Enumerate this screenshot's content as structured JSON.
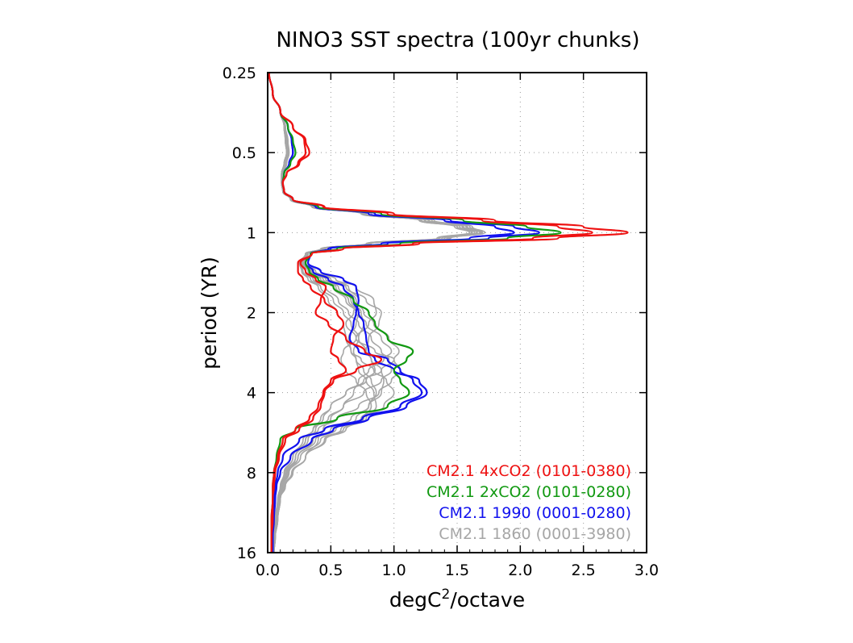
{
  "chart_data": {
    "type": "line",
    "title": "NINO3 SST spectra (100yr chunks)",
    "xlabel": {
      "base": "degC",
      "superscript": "2",
      "suffix": "/octave"
    },
    "ylabel": "period (YR)",
    "xlim": [
      0.0,
      3.0
    ],
    "ylim": [
      0.25,
      16
    ],
    "y_scale": "log2",
    "y_inverted": true,
    "x_ticks": [
      "0.0",
      "0.5",
      "1.0",
      "1.5",
      "2.0",
      "2.5",
      "3.0"
    ],
    "x_tick_values": [
      0.0,
      0.5,
      1.0,
      1.5,
      2.0,
      2.5,
      3.0
    ],
    "y_ticks": [
      "0.25",
      "0.5",
      "1",
      "2",
      "4",
      "8",
      "16"
    ],
    "y_tick_values": [
      0.25,
      0.5,
      1,
      2,
      4,
      8,
      16
    ],
    "grid": true,
    "legend_position": "bottom-right",
    "periods": [
      0.25,
      0.3,
      0.35,
      0.4,
      0.45,
      0.5,
      0.55,
      0.6,
      0.65,
      0.7,
      0.75,
      0.8,
      0.85,
      0.9,
      0.95,
      1.0,
      1.05,
      1.1,
      1.15,
      1.2,
      1.3,
      1.4,
      1.5,
      1.6,
      1.8,
      2.0,
      2.2,
      2.5,
      2.8,
      3.0,
      3.3,
      3.6,
      4.0,
      4.5,
      5.0,
      5.5,
      6.0,
      7.0,
      8.0,
      9.0,
      10.0,
      12.0,
      14.0,
      16.0
    ],
    "series": [
      {
        "name": "CM2.1 4xCO2 (0101-0380)",
        "color": "#ee1111",
        "members": [
          [
            0.01,
            0.04,
            0.1,
            0.2,
            0.3,
            0.33,
            0.25,
            0.15,
            0.12,
            0.13,
            0.2,
            0.45,
            1.0,
            1.8,
            2.5,
            2.85,
            2.3,
            1.2,
            0.6,
            0.35,
            0.24,
            0.24,
            0.28,
            0.34,
            0.45,
            0.55,
            0.6,
            0.52,
            0.5,
            0.56,
            0.62,
            0.5,
            0.44,
            0.4,
            0.33,
            0.22,
            0.12,
            0.08,
            0.05,
            0.04,
            0.04,
            0.03,
            0.03,
            0.03
          ],
          [
            0.01,
            0.04,
            0.1,
            0.2,
            0.29,
            0.3,
            0.24,
            0.15,
            0.12,
            0.13,
            0.2,
            0.44,
            0.95,
            1.7,
            2.3,
            2.57,
            2.1,
            1.15,
            0.6,
            0.35,
            0.26,
            0.3,
            0.38,
            0.46,
            0.42,
            0.38,
            0.48,
            0.62,
            0.77,
            0.9,
            0.7,
            0.52,
            0.45,
            0.42,
            0.36,
            0.25,
            0.14,
            0.09,
            0.06,
            0.05,
            0.04,
            0.04,
            0.03,
            0.03
          ]
        ]
      },
      {
        "name": "CM2.1 2xCO2 (0101-0280)",
        "color": "#119911",
        "members": [
          [
            0.01,
            0.04,
            0.1,
            0.16,
            0.2,
            0.22,
            0.18,
            0.13,
            0.12,
            0.13,
            0.2,
            0.4,
            0.9,
            1.55,
            2.05,
            2.32,
            1.9,
            1.05,
            0.55,
            0.34,
            0.3,
            0.33,
            0.4,
            0.52,
            0.68,
            0.8,
            0.85,
            0.95,
            1.15,
            1.1,
            1.0,
            1.05,
            1.12,
            0.95,
            0.55,
            0.22,
            0.1,
            0.07,
            0.05,
            0.04,
            0.04,
            0.03,
            0.03,
            0.03
          ]
        ]
      },
      {
        "name": "CM2.1 1990 (0001-0280)",
        "color": "#1111ee",
        "members": [
          [
            0.01,
            0.04,
            0.1,
            0.16,
            0.19,
            0.2,
            0.17,
            0.13,
            0.12,
            0.13,
            0.2,
            0.4,
            0.85,
            1.45,
            1.95,
            2.15,
            1.75,
            0.95,
            0.5,
            0.34,
            0.32,
            0.42,
            0.6,
            0.7,
            0.72,
            0.7,
            0.68,
            0.65,
            0.72,
            0.95,
            1.05,
            1.15,
            1.22,
            1.05,
            0.75,
            0.45,
            0.25,
            0.12,
            0.08,
            0.06,
            0.05,
            0.04,
            0.04,
            0.04
          ],
          [
            0.01,
            0.04,
            0.1,
            0.16,
            0.19,
            0.2,
            0.17,
            0.13,
            0.12,
            0.13,
            0.2,
            0.38,
            0.8,
            1.4,
            1.8,
            1.95,
            1.6,
            0.9,
            0.48,
            0.34,
            0.3,
            0.36,
            0.48,
            0.6,
            0.68,
            0.72,
            0.76,
            0.78,
            0.8,
            0.85,
            1.0,
            1.2,
            1.26,
            1.1,
            0.8,
            0.52,
            0.35,
            0.18,
            0.1,
            0.07,
            0.06,
            0.05,
            0.04,
            0.04
          ]
        ]
      },
      {
        "name": "CM2.1 1860 (0001-3980)",
        "color": "#a6a6a6",
        "members": [
          [
            0.01,
            0.04,
            0.1,
            0.14,
            0.15,
            0.16,
            0.14,
            0.12,
            0.12,
            0.13,
            0.2,
            0.38,
            0.8,
            1.3,
            1.6,
            1.72,
            1.45,
            0.82,
            0.45,
            0.32,
            0.28,
            0.34,
            0.46,
            0.62,
            0.78,
            0.9,
            0.88,
            0.8,
            0.78,
            0.82,
            0.85,
            0.78,
            0.62,
            0.5,
            0.42,
            0.36,
            0.3,
            0.22,
            0.16,
            0.12,
            0.1,
            0.08,
            0.06,
            0.05
          ],
          [
            0.01,
            0.04,
            0.1,
            0.13,
            0.14,
            0.15,
            0.13,
            0.11,
            0.11,
            0.12,
            0.18,
            0.35,
            0.75,
            1.2,
            1.5,
            1.62,
            1.35,
            0.78,
            0.42,
            0.3,
            0.26,
            0.3,
            0.4,
            0.52,
            0.62,
            0.7,
            0.78,
            0.9,
            0.98,
            0.92,
            0.8,
            0.72,
            0.68,
            0.6,
            0.48,
            0.36,
            0.28,
            0.2,
            0.14,
            0.1,
            0.08,
            0.06,
            0.05,
            0.04
          ],
          [
            0.01,
            0.04,
            0.1,
            0.14,
            0.15,
            0.16,
            0.14,
            0.12,
            0.12,
            0.13,
            0.2,
            0.37,
            0.78,
            1.25,
            1.55,
            1.68,
            1.4,
            0.8,
            0.44,
            0.31,
            0.27,
            0.36,
            0.5,
            0.64,
            0.72,
            0.68,
            0.62,
            0.7,
            0.85,
            1.0,
            1.05,
            0.98,
            0.88,
            0.72,
            0.55,
            0.4,
            0.3,
            0.2,
            0.13,
            0.1,
            0.08,
            0.06,
            0.05,
            0.04
          ],
          [
            0.01,
            0.04,
            0.1,
            0.13,
            0.15,
            0.15,
            0.13,
            0.11,
            0.11,
            0.12,
            0.19,
            0.36,
            0.76,
            1.22,
            1.52,
            1.64,
            1.38,
            0.8,
            0.44,
            0.3,
            0.26,
            0.28,
            0.34,
            0.42,
            0.52,
            0.6,
            0.66,
            0.72,
            0.78,
            0.82,
            0.9,
            0.92,
            0.9,
            0.8,
            0.66,
            0.5,
            0.36,
            0.24,
            0.16,
            0.12,
            0.1,
            0.07,
            0.06,
            0.05
          ],
          [
            0.01,
            0.04,
            0.1,
            0.14,
            0.16,
            0.17,
            0.15,
            0.12,
            0.12,
            0.13,
            0.2,
            0.39,
            0.82,
            1.32,
            1.62,
            1.7,
            1.42,
            0.82,
            0.46,
            0.32,
            0.29,
            0.38,
            0.54,
            0.7,
            0.84,
            0.86,
            0.8,
            0.7,
            0.6,
            0.58,
            0.62,
            0.7,
            0.78,
            0.82,
            0.76,
            0.6,
            0.42,
            0.26,
            0.17,
            0.12,
            0.09,
            0.07,
            0.06,
            0.05
          ],
          [
            0.01,
            0.04,
            0.1,
            0.13,
            0.14,
            0.15,
            0.13,
            0.11,
            0.11,
            0.12,
            0.18,
            0.35,
            0.74,
            1.2,
            1.48,
            1.6,
            1.34,
            0.78,
            0.43,
            0.3,
            0.25,
            0.27,
            0.32,
            0.4,
            0.48,
            0.55,
            0.6,
            0.62,
            0.66,
            0.7,
            0.76,
            0.82,
            0.86,
            0.8,
            0.7,
            0.58,
            0.45,
            0.3,
            0.2,
            0.14,
            0.1,
            0.08,
            0.06,
            0.05
          ],
          [
            0.01,
            0.04,
            0.1,
            0.14,
            0.15,
            0.16,
            0.14,
            0.12,
            0.12,
            0.13,
            0.2,
            0.38,
            0.8,
            1.28,
            1.58,
            1.7,
            1.44,
            0.82,
            0.45,
            0.32,
            0.28,
            0.35,
            0.48,
            0.6,
            0.7,
            0.76,
            0.84,
            0.96,
            1.04,
            1.0,
            0.9,
            0.76,
            0.62,
            0.5,
            0.44,
            0.38,
            0.32,
            0.22,
            0.15,
            0.11,
            0.09,
            0.07,
            0.05,
            0.04
          ],
          [
            0.01,
            0.04,
            0.1,
            0.13,
            0.15,
            0.15,
            0.13,
            0.11,
            0.11,
            0.12,
            0.19,
            0.36,
            0.77,
            1.24,
            1.54,
            1.66,
            1.4,
            0.8,
            0.44,
            0.31,
            0.27,
            0.32,
            0.42,
            0.54,
            0.64,
            0.72,
            0.7,
            0.64,
            0.66,
            0.74,
            0.84,
            0.94,
            1.0,
            0.92,
            0.74,
            0.54,
            0.38,
            0.24,
            0.15,
            0.11,
            0.09,
            0.07,
            0.05,
            0.04
          ],
          [
            0.01,
            0.04,
            0.1,
            0.14,
            0.16,
            0.16,
            0.14,
            0.12,
            0.12,
            0.13,
            0.2,
            0.38,
            0.8,
            1.27,
            1.57,
            1.69,
            1.43,
            0.81,
            0.45,
            0.32,
            0.28,
            0.3,
            0.36,
            0.46,
            0.56,
            0.64,
            0.72,
            0.82,
            0.9,
            0.96,
            0.98,
            0.9,
            0.76,
            0.6,
            0.5,
            0.44,
            0.4,
            0.3,
            0.2,
            0.14,
            0.1,
            0.08,
            0.06,
            0.05
          ],
          [
            0.01,
            0.04,
            0.1,
            0.13,
            0.14,
            0.15,
            0.13,
            0.11,
            0.11,
            0.12,
            0.18,
            0.35,
            0.75,
            1.21,
            1.5,
            1.62,
            1.36,
            0.79,
            0.43,
            0.3,
            0.26,
            0.33,
            0.44,
            0.56,
            0.66,
            0.74,
            0.76,
            0.72,
            0.68,
            0.7,
            0.72,
            0.78,
            0.84,
            0.86,
            0.78,
            0.62,
            0.46,
            0.3,
            0.19,
            0.13,
            0.1,
            0.07,
            0.06,
            0.05
          ]
        ]
      }
    ]
  }
}
